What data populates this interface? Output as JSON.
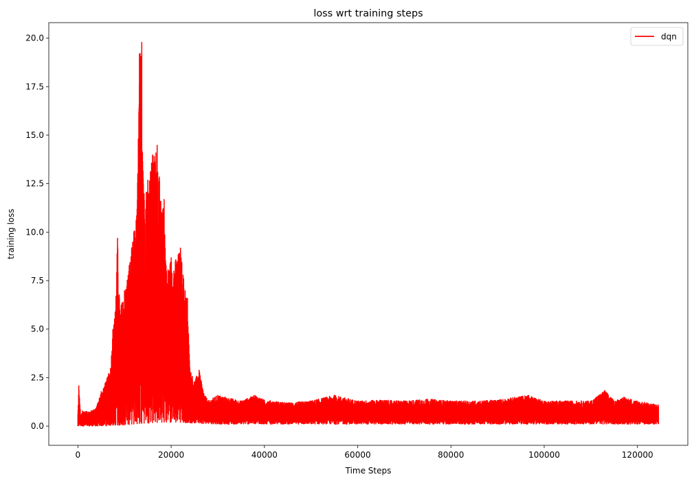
{
  "chart_data": {
    "type": "line",
    "title": "loss wrt training steps",
    "xlabel": "Time Steps",
    "ylabel": "training loss",
    "xlim": [
      -6240,
      130800
    ],
    "ylim": [
      -0.99,
      20.8
    ],
    "xticks": [
      0,
      20000,
      40000,
      60000,
      80000,
      100000,
      120000
    ],
    "xtick_labels": [
      "0",
      "20000",
      "40000",
      "60000",
      "80000",
      "100000",
      "120000"
    ],
    "yticks": [
      0.0,
      2.5,
      5.0,
      7.5,
      10.0,
      12.5,
      15.0,
      17.5,
      20.0
    ],
    "ytick_labels": [
      "0.0",
      "2.5",
      "5.0",
      "7.5",
      "10.0",
      "12.5",
      "15.0",
      "17.5",
      "20.0"
    ],
    "grid": false,
    "legend_position": "top-right",
    "series": [
      {
        "name": "dqn",
        "color": "#ff0000",
        "x_max": 124500,
        "envelope_upper": [
          [
            0,
            0.6
          ],
          [
            200,
            2.1
          ],
          [
            600,
            0.5
          ],
          [
            1000,
            0.8
          ],
          [
            2000,
            0.75
          ],
          [
            3000,
            0.8
          ],
          [
            4000,
            1.0
          ],
          [
            5000,
            1.8
          ],
          [
            6000,
            2.3
          ],
          [
            7000,
            3.0
          ],
          [
            7500,
            5.0
          ],
          [
            8000,
            5.9
          ],
          [
            8500,
            9.7
          ],
          [
            9000,
            6.0
          ],
          [
            10000,
            7.0
          ],
          [
            11000,
            8.3
          ],
          [
            12000,
            10.0
          ],
          [
            12700,
            11.2
          ],
          [
            13200,
            19.2
          ],
          [
            13700,
            19.8
          ],
          [
            14200,
            12.0
          ],
          [
            15000,
            12.7
          ],
          [
            16000,
            14.0
          ],
          [
            17000,
            14.5
          ],
          [
            18000,
            11.0
          ],
          [
            18500,
            11.7
          ],
          [
            19000,
            8.0
          ],
          [
            20000,
            8.7
          ],
          [
            21000,
            8.6
          ],
          [
            22000,
            9.2
          ],
          [
            23000,
            7.0
          ],
          [
            23500,
            6.6
          ],
          [
            24000,
            3.0
          ],
          [
            25000,
            2.3
          ],
          [
            26000,
            2.9
          ],
          [
            27000,
            1.7
          ],
          [
            28000,
            1.3
          ],
          [
            30000,
            1.6
          ],
          [
            35000,
            1.3
          ],
          [
            38000,
            1.6
          ],
          [
            40000,
            1.35
          ],
          [
            45000,
            1.2
          ],
          [
            50000,
            1.3
          ],
          [
            55000,
            1.6
          ],
          [
            60000,
            1.3
          ],
          [
            65000,
            1.35
          ],
          [
            70000,
            1.3
          ],
          [
            75000,
            1.4
          ],
          [
            80000,
            1.3
          ],
          [
            85000,
            1.3
          ],
          [
            90000,
            1.35
          ],
          [
            96500,
            1.6
          ],
          [
            100000,
            1.3
          ],
          [
            105000,
            1.3
          ],
          [
            110000,
            1.3
          ],
          [
            113000,
            1.85
          ],
          [
            115000,
            1.3
          ],
          [
            117000,
            1.5
          ],
          [
            120000,
            1.3
          ],
          [
            124500,
            1.1
          ]
        ],
        "envelope_lower": [
          [
            0,
            0.0
          ],
          [
            5000,
            0.0
          ],
          [
            10000,
            0.05
          ],
          [
            15000,
            0.15
          ],
          [
            20000,
            0.2
          ],
          [
            25000,
            0.15
          ],
          [
            30000,
            0.1
          ],
          [
            124500,
            0.1
          ]
        ]
      }
    ]
  }
}
